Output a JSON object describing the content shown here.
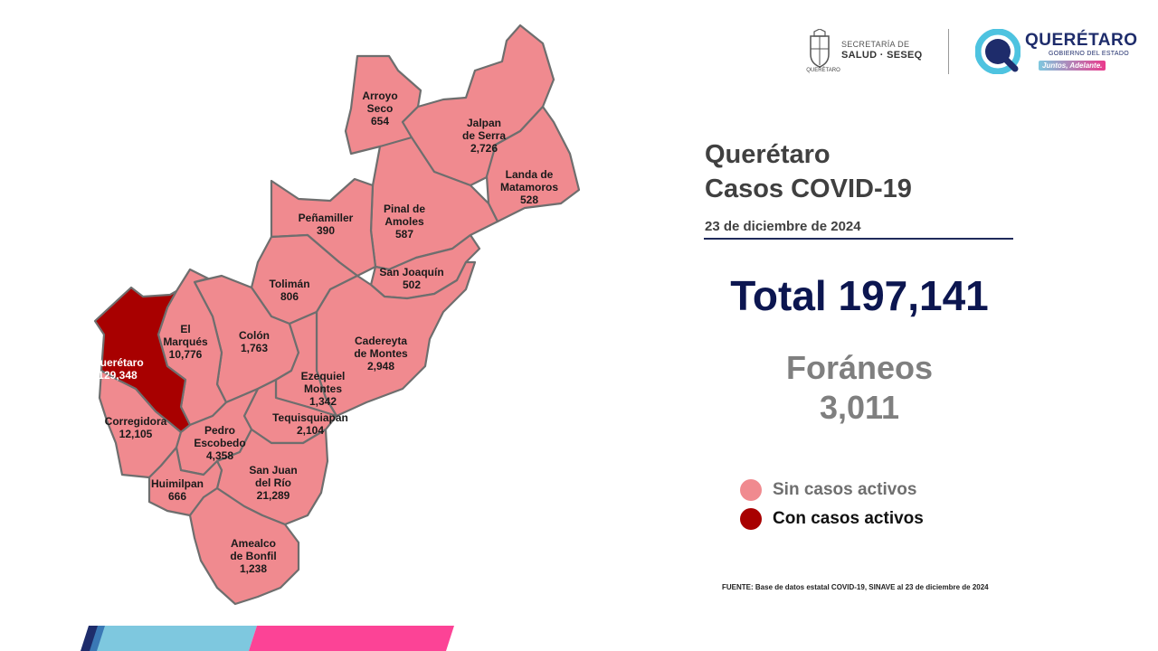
{
  "header": {
    "seal_caption": "QUERÉTARO",
    "secretaria_line1": "SECRETARÍA DE",
    "secretaria_line2": "SALUD · SESEQ",
    "gov_name": "QUERÉTARO",
    "gov_sub": "GOBIERNO DEL ESTADO",
    "gov_slogan": "Juntos, Adelante."
  },
  "title_line1": "Querétaro",
  "title_line2": "Casos COVID-19",
  "date": "23 de diciembre de 2024",
  "total": "Total 197,141",
  "foraneos_label": "Foráneos",
  "foraneos_value": "3,011",
  "legend": [
    {
      "label": "Sin casos activos",
      "color": "#f08a8f",
      "text_color": "#6f6f6f"
    },
    {
      "label": "Con casos activos",
      "color": "#a80000",
      "text_color": "#111111"
    }
  ],
  "source": "FUENTE: Base de datos estatal COVID-19, SINAVE  al 23 de diciembre de 2024",
  "colors": {
    "inactive": "#f08a8f",
    "active": "#a80000",
    "navy": "#0c1650",
    "bar_blue": "#7ec8df",
    "bar_pink": "#fc4396"
  },
  "municipalities": [
    {
      "name_lines": [
        "Arroyo",
        "Seco"
      ],
      "cases": "654",
      "active": false
    },
    {
      "name_lines": [
        "Jalpan",
        "de Serra"
      ],
      "cases": "2,726",
      "active": false
    },
    {
      "name_lines": [
        "Landa de",
        "Matamoros"
      ],
      "cases": "528",
      "active": false
    },
    {
      "name_lines": [
        "Pinal de",
        "Amoles"
      ],
      "cases": "587",
      "active": false
    },
    {
      "name_lines": [
        "Peñamiller"
      ],
      "cases": "390",
      "active": false
    },
    {
      "name_lines": [
        "San Joaquín"
      ],
      "cases": "502",
      "active": false
    },
    {
      "name_lines": [
        "Tolimán"
      ],
      "cases": "806",
      "active": false
    },
    {
      "name_lines": [
        "Cadereyta",
        "de Montes"
      ],
      "cases": "2,948",
      "active": false
    },
    {
      "name_lines": [
        "Colón"
      ],
      "cases": "1,763",
      "active": false
    },
    {
      "name_lines": [
        "El",
        "Marqués"
      ],
      "cases": "10,776",
      "active": false
    },
    {
      "name_lines": [
        "Querétaro"
      ],
      "cases": "129,348",
      "active": true
    },
    {
      "name_lines": [
        "Ezequiel",
        "Montes"
      ],
      "cases": "1,342",
      "active": false
    },
    {
      "name_lines": [
        "Corregidora"
      ],
      "cases": "12,105",
      "active": false
    },
    {
      "name_lines": [
        "Tequisquiapan"
      ],
      "cases": "2,104",
      "active": false
    },
    {
      "name_lines": [
        "Pedro",
        "Escobedo"
      ],
      "cases": "4,358",
      "active": false
    },
    {
      "name_lines": [
        "San Juan",
        "del Río"
      ],
      "cases": "21,289",
      "active": false
    },
    {
      "name_lines": [
        "Huimilpan"
      ],
      "cases": "666",
      "active": false
    },
    {
      "name_lines": [
        "Amealco",
        "de Bonfil"
      ],
      "cases": "1,238",
      "active": false
    }
  ]
}
